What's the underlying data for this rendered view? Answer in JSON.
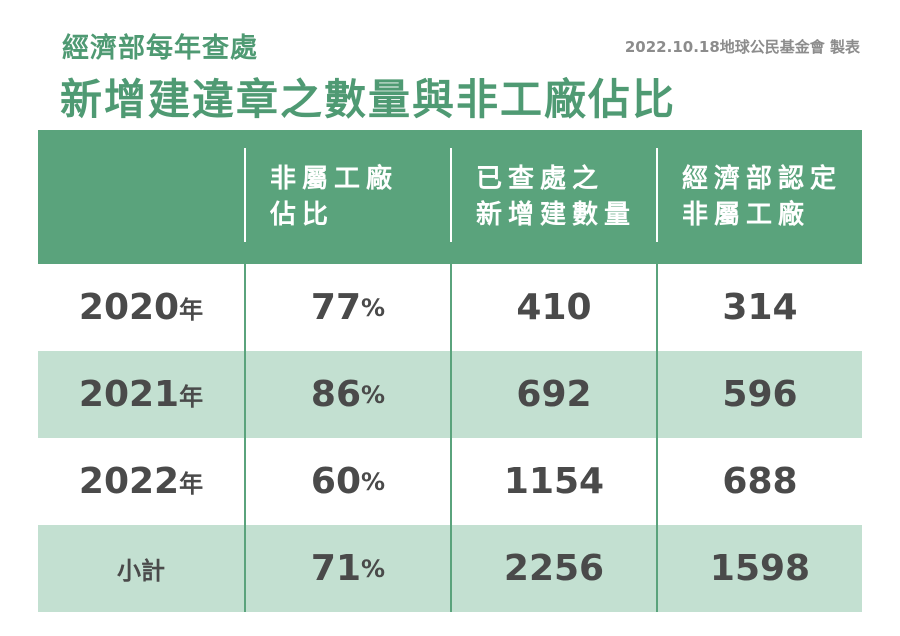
{
  "header": {
    "subtitle": "經濟部每年查處",
    "title": "新增建違章之數量與非工廠佔比",
    "credit": "2022.10.18地球公民基金會 製表"
  },
  "table": {
    "columns": [
      "",
      "非屬工廠\n佔比",
      "已查處之\n新增建數量",
      "經濟部認定\n非屬工廠"
    ],
    "rows": [
      {
        "label": "2020",
        "unit": "年",
        "ratio": "77",
        "ratio_unit": "%",
        "count": "410",
        "non_factory": "314"
      },
      {
        "label": "2021",
        "unit": "年",
        "ratio": "86",
        "ratio_unit": "%",
        "count": "692",
        "non_factory": "596"
      },
      {
        "label": "2022",
        "unit": "年",
        "ratio": "60",
        "ratio_unit": "%",
        "count": "1154",
        "non_factory": "688"
      },
      {
        "label": "小計",
        "unit": "",
        "ratio": "71",
        "ratio_unit": "%",
        "count": "2256",
        "non_factory": "1598"
      }
    ]
  },
  "colors": {
    "accent": "#5aa37c",
    "title": "#4f9a73",
    "row_alt": "#c3e0d1",
    "text": "#4a4a4a"
  }
}
